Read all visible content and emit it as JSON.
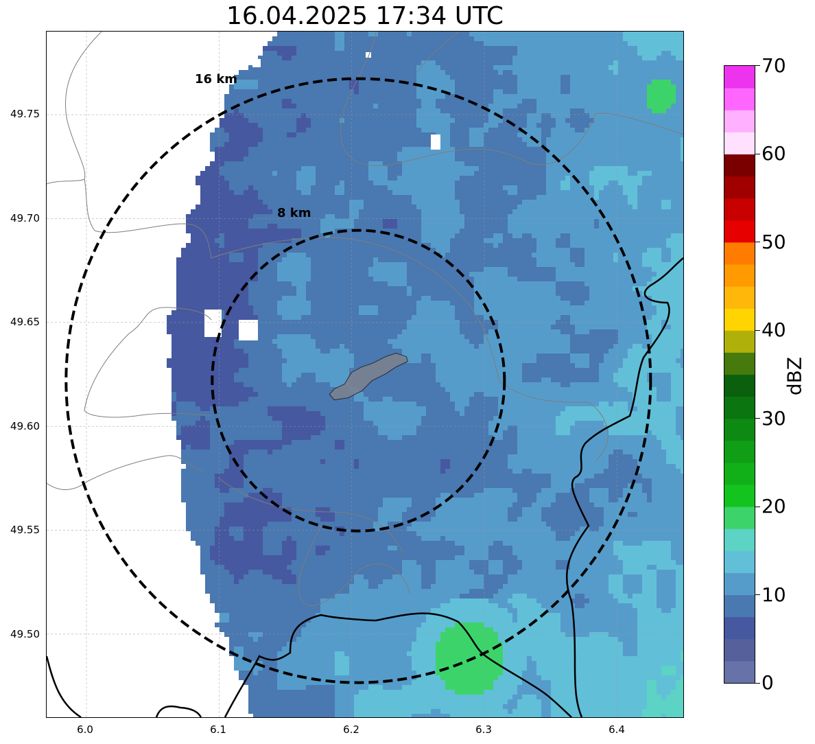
{
  "title": "16.04.2025 17:34 UTC",
  "map": {
    "lon_range": [
      5.97,
      6.45
    ],
    "lat_range": [
      49.46,
      49.79
    ],
    "x_ticks": [
      "6.0",
      "6.1",
      "6.2",
      "6.3",
      "6.4"
    ],
    "y_ticks": [
      "49.75",
      "49.70",
      "49.65",
      "49.60",
      "49.55",
      "49.50"
    ],
    "center": {
      "lon": 6.205,
      "lat": 49.622
    },
    "rings": [
      {
        "label": "8 km"
      },
      {
        "label": "16 km"
      }
    ],
    "ring_style": "black dashed",
    "grid": true,
    "no_data_color": "#ffffff",
    "site_polygon_color": "#7a8290"
  },
  "colorbar": {
    "label": "dBZ",
    "ticks": [
      "0",
      "10",
      "20",
      "30",
      "40",
      "50",
      "60",
      "70"
    ],
    "range": [
      0,
      70
    ],
    "colors": [
      "#6672a8",
      "#56619b",
      "#4658a0",
      "#4a78b0",
      "#569ccb",
      "#62bfd8",
      "#5cd3c4",
      "#3cd46a",
      "#14c41e",
      "#12b018",
      "#0f9e16",
      "#0d8a12",
      "#0b7510",
      "#0a600c",
      "#467a0c",
      "#b0b00a",
      "#ffd400",
      "#ffb70a",
      "#ff9a00",
      "#ff7c00",
      "#e60000",
      "#c80000",
      "#a00000",
      "#7a0000",
      "#ffe0ff",
      "#ffb0ff",
      "#ff66ff",
      "#ee33ee"
    ]
  }
}
